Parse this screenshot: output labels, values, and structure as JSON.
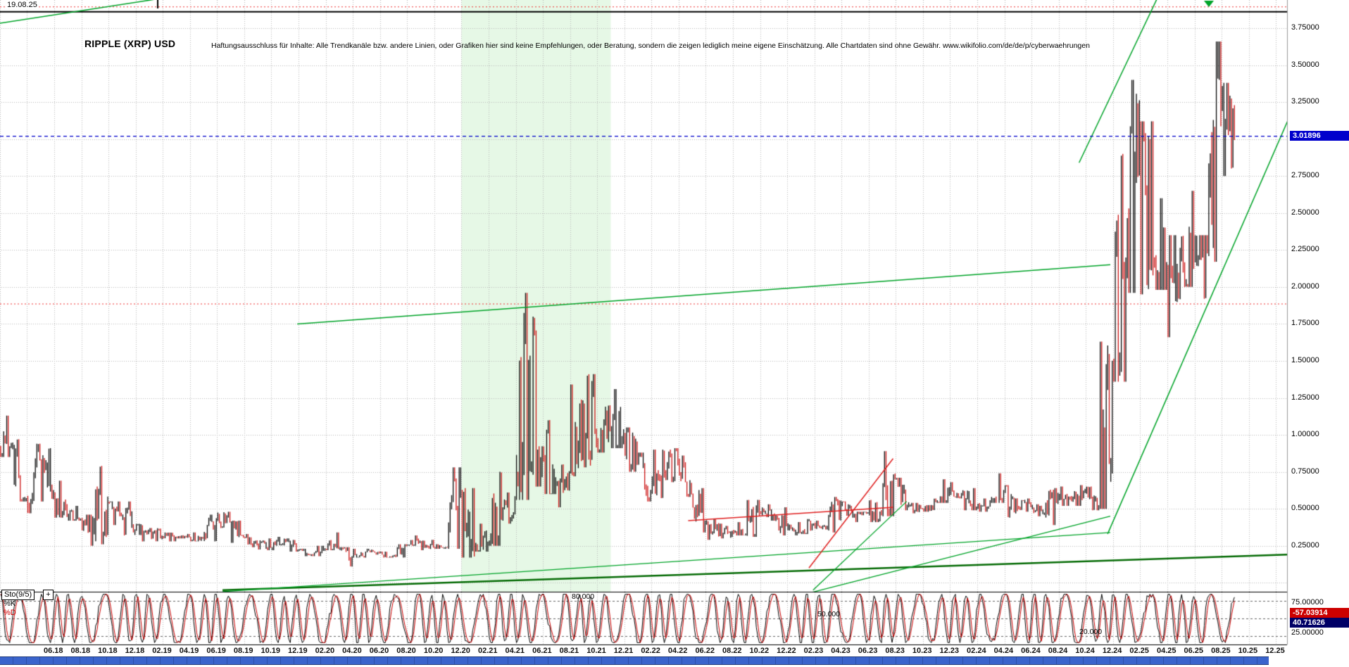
{
  "window": {
    "date_label": "19.08.25"
  },
  "header": {
    "title": "RIPPLE (XRP) USD",
    "disclaimer": "Haftungsausschluss für Inhalte: Alle Trendkanäle bzw. andere Linien, oder Grafiken hier sind keine Empfehlungen, oder Beratung, sondern die zeigen lediglich meine eigene Einschätzung. Alle Chartdaten sind ohne Gewähr.  www.wikifolio.com/de/de/p/cyberwaehrungen"
  },
  "chart_data": {
    "type": "candlestick",
    "title": "RIPPLE (XRP) USD",
    "colors": {
      "up": "#0a0a0a",
      "down": "#cc1414",
      "grid": "#b8b8b8",
      "region": "#e6f8e6",
      "accent_green": "#00a428",
      "accent_dark_green": "#056b05",
      "accent_red": "#e02020",
      "current_blue": "#0000cc"
    },
    "y_axis": {
      "ticks": [
        {
          "value": 3.75,
          "label": "3.75000"
        },
        {
          "value": 3.5,
          "label": "3.50000"
        },
        {
          "value": 3.25,
          "label": "3.25000"
        },
        {
          "value": 2.75,
          "label": "2.75000"
        },
        {
          "value": 2.5,
          "label": "2.50000"
        },
        {
          "value": 2.25,
          "label": "2.25000"
        },
        {
          "value": 2.0,
          "label": "2.00000"
        },
        {
          "value": 1.75,
          "label": "1.75000"
        },
        {
          "value": 1.5,
          "label": "1.50000"
        },
        {
          "value": 1.25,
          "label": "1.25000"
        },
        {
          "value": 1.0,
          "label": "1.00000"
        },
        {
          "value": 0.75,
          "label": "0.75000"
        },
        {
          "value": 0.5,
          "label": "0.50000"
        },
        {
          "value": 0.25,
          "label": "0.25000"
        }
      ],
      "range": [
        0,
        3.95
      ]
    },
    "x_axis": {
      "ticks": [
        "06.18",
        "08.18",
        "10.18",
        "12.18",
        "02.19",
        "04.19",
        "06.19",
        "08.19",
        "10.19",
        "12.19",
        "02.20",
        "04.20",
        "06.20",
        "08.20",
        "10.20",
        "12.20",
        "02.21",
        "04.21",
        "06.21",
        "08.21",
        "10.21",
        "12.21",
        "02.22",
        "04.22",
        "06.22",
        "08.22",
        "10.22",
        "12.22",
        "02.23",
        "04.23",
        "06.23",
        "08.23",
        "10.23",
        "12.23",
        "02.24",
        "04.24",
        "06.24",
        "08.24",
        "10.24",
        "12.24",
        "02.25",
        "04.25",
        "06.25",
        "08.25",
        "10.25",
        "12.25"
      ]
    },
    "current_price": {
      "label": "3.01896",
      "value": 3.01896
    },
    "series": {
      "start_month": "2018-02",
      "interval": "monthly",
      "close": [
        0.91,
        0.57,
        0.83,
        0.61,
        0.46,
        0.43,
        0.33,
        0.58,
        0.45,
        0.36,
        0.35,
        0.31,
        0.31,
        0.31,
        0.3,
        0.43,
        0.41,
        0.31,
        0.26,
        0.24,
        0.29,
        0.22,
        0.19,
        0.23,
        0.23,
        0.17,
        0.21,
        0.2,
        0.18,
        0.25,
        0.28,
        0.24,
        0.24,
        0.6,
        0.21,
        0.27,
        0.43,
        0.57,
        1.4,
        0.9,
        0.68,
        0.75,
        1.19,
        0.95,
        1.05,
        1.0,
        0.83,
        0.61,
        0.75,
        0.82,
        0.6,
        0.4,
        0.32,
        0.35,
        0.33,
        0.48,
        0.45,
        0.4,
        0.34,
        0.4,
        0.38,
        0.53,
        0.46,
        0.47,
        0.47,
        0.7,
        0.52,
        0.5,
        0.55,
        0.6,
        0.62,
        0.5,
        0.55,
        0.62,
        0.51,
        0.52,
        0.47,
        0.6,
        0.56,
        0.62,
        0.51,
        1.4,
        2.08,
        3.1,
        2.15,
        2.1,
        2.2,
        2.18,
        2.25,
        3.2,
        3.019
      ],
      "high": [
        1.13,
        0.97,
        0.94,
        0.91,
        0.69,
        0.52,
        0.46,
        0.79,
        0.55,
        0.55,
        0.4,
        0.37,
        0.34,
        0.33,
        0.34,
        0.46,
        0.48,
        0.42,
        0.33,
        0.3,
        0.31,
        0.3,
        0.23,
        0.25,
        0.34,
        0.24,
        0.23,
        0.23,
        0.21,
        0.26,
        0.32,
        0.29,
        0.26,
        0.78,
        0.64,
        0.4,
        0.75,
        0.61,
        1.96,
        1.8,
        1.1,
        0.8,
        1.34,
        1.41,
        1.2,
        1.31,
        1.05,
        0.88,
        0.9,
        0.91,
        0.86,
        0.64,
        0.43,
        0.4,
        0.41,
        0.56,
        0.53,
        0.51,
        0.41,
        0.43,
        0.42,
        0.58,
        0.55,
        0.48,
        0.56,
        0.89,
        0.71,
        0.54,
        0.57,
        0.7,
        0.68,
        0.64,
        0.57,
        0.74,
        0.66,
        0.57,
        0.53,
        0.64,
        0.65,
        0.66,
        0.65,
        1.63,
        2.9,
        3.4,
        3.12,
        2.6,
        2.35,
        2.65,
        2.35,
        3.66,
        3.38
      ],
      "low": [
        0.85,
        0.55,
        0.47,
        0.55,
        0.44,
        0.42,
        0.25,
        0.26,
        0.39,
        0.32,
        0.28,
        0.28,
        0.28,
        0.3,
        0.28,
        0.28,
        0.37,
        0.27,
        0.24,
        0.22,
        0.22,
        0.21,
        0.18,
        0.18,
        0.22,
        0.11,
        0.17,
        0.19,
        0.17,
        0.17,
        0.25,
        0.22,
        0.23,
        0.23,
        0.17,
        0.21,
        0.25,
        0.4,
        0.56,
        0.65,
        0.6,
        0.51,
        0.72,
        0.78,
        0.88,
        0.91,
        0.75,
        0.55,
        0.57,
        0.68,
        0.58,
        0.34,
        0.29,
        0.3,
        0.32,
        0.31,
        0.42,
        0.32,
        0.32,
        0.33,
        0.36,
        0.34,
        0.44,
        0.41,
        0.41,
        0.45,
        0.49,
        0.47,
        0.48,
        0.54,
        0.57,
        0.49,
        0.48,
        0.54,
        0.44,
        0.48,
        0.45,
        0.39,
        0.52,
        0.52,
        0.49,
        0.5,
        1.36,
        1.96,
        1.95,
        1.98,
        1.66,
        2.0,
        1.92,
        2.17,
        2.75
      ]
    },
    "highlight_region": {
      "from": "2020-12",
      "to": "2021-11",
      "color": "#e6f8e6"
    },
    "trend_lines": [
      {
        "mi1": -4.2,
        "p1": 3.78,
        "mi2": 7.8,
        "p2": 3.95,
        "color": "#00a428",
        "w": 1.5
      },
      {
        "mi1": 17.9,
        "p1": 1.75,
        "mi2": 77.8,
        "p2": 2.15,
        "color": "#00a428",
        "w": 1.5
      },
      {
        "mi1": 75.5,
        "p1": 2.84,
        "mi2": 81.3,
        "p2": 3.96,
        "color": "#00a428",
        "w": 1.5
      },
      {
        "mi1": 77.6,
        "p1": 0.33,
        "mi2": 90.9,
        "p2": 3.13,
        "color": "#00a428",
        "w": 1.5
      },
      {
        "mi1": 12.4,
        "p1": -0.05,
        "mi2": 90.9,
        "p2": 0.19,
        "color": "#056b05",
        "w": 2.5
      },
      {
        "mi1": 12.4,
        "p1": -0.06,
        "mi2": 77.8,
        "p2": 0.34,
        "color": "#00a428",
        "w": 1.3
      },
      {
        "mi1": 55.6,
        "p1": -0.07,
        "mi2": 77.8,
        "p2": 0.45,
        "color": "#00a428",
        "w": 1.3
      },
      {
        "mi1": 55.9,
        "p1": -0.05,
        "mi2": 62.8,
        "p2": 0.55,
        "color": "#00a428",
        "w": 1.3
      },
      {
        "mi1": 46.7,
        "p1": 0.42,
        "mi2": 61.8,
        "p2": 0.51,
        "color": "#e02020",
        "w": 1.5
      },
      {
        "mi1": 55.6,
        "p1": 0.1,
        "mi2": 61.8,
        "p2": 0.84,
        "color": "#e02020",
        "w": 1.5
      }
    ],
    "h_lines": [
      {
        "price": 3.861,
        "color": "#000000",
        "style": "solid",
        "w": 2
      },
      {
        "price": 3.894,
        "color": "#f03030",
        "style": "dotted",
        "w": 1.2
      },
      {
        "price": 1.885,
        "color": "#f03030",
        "style": "dotted",
        "w": 1.2
      },
      {
        "price": 3.01896,
        "color": "#0000cc",
        "style": "dashed",
        "w": 1.4
      }
    ],
    "indicator": {
      "name": "Sto(9/5)",
      "k_label": "%K",
      "d_label": "%D",
      "k_color": "#000000",
      "d_color": "#cc0000",
      "levels": [
        {
          "value": 80,
          "label": "80.000"
        },
        {
          "value": 50,
          "label": "50.000"
        },
        {
          "value": 20,
          "label": "20.000"
        }
      ],
      "scale_hi_label": "75.00000",
      "scale_lo_label": "25.00000",
      "k_value_label": "-57.03914",
      "d_value_label": "40.71626"
    }
  }
}
